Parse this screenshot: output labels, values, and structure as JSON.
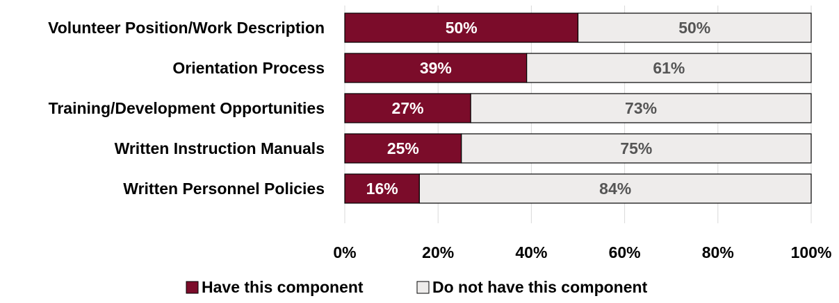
{
  "chart_data": {
    "type": "bar",
    "orientation": "horizontal",
    "stacked": true,
    "categories": [
      "Volunteer Position/Work Description",
      "Orientation Process",
      "Training/Development Opportunities",
      "Written Instruction Manuals",
      "Written Personnel Policies"
    ],
    "series": [
      {
        "name": "Have this component",
        "values": [
          50,
          39,
          27,
          25,
          16
        ],
        "color": "#7b0c2a",
        "label_color": "#ffffff"
      },
      {
        "name": "Do not have this component",
        "values": [
          50,
          61,
          73,
          75,
          84
        ],
        "color": "#eeeceb",
        "label_color": "#555555"
      }
    ],
    "xlim": [
      0,
      100
    ],
    "xticks": [
      0,
      20,
      40,
      60,
      80,
      100
    ],
    "tick_suffix": "%",
    "grid": "vertical",
    "legend": "bottom",
    "title": "",
    "xlabel": "",
    "ylabel": ""
  }
}
